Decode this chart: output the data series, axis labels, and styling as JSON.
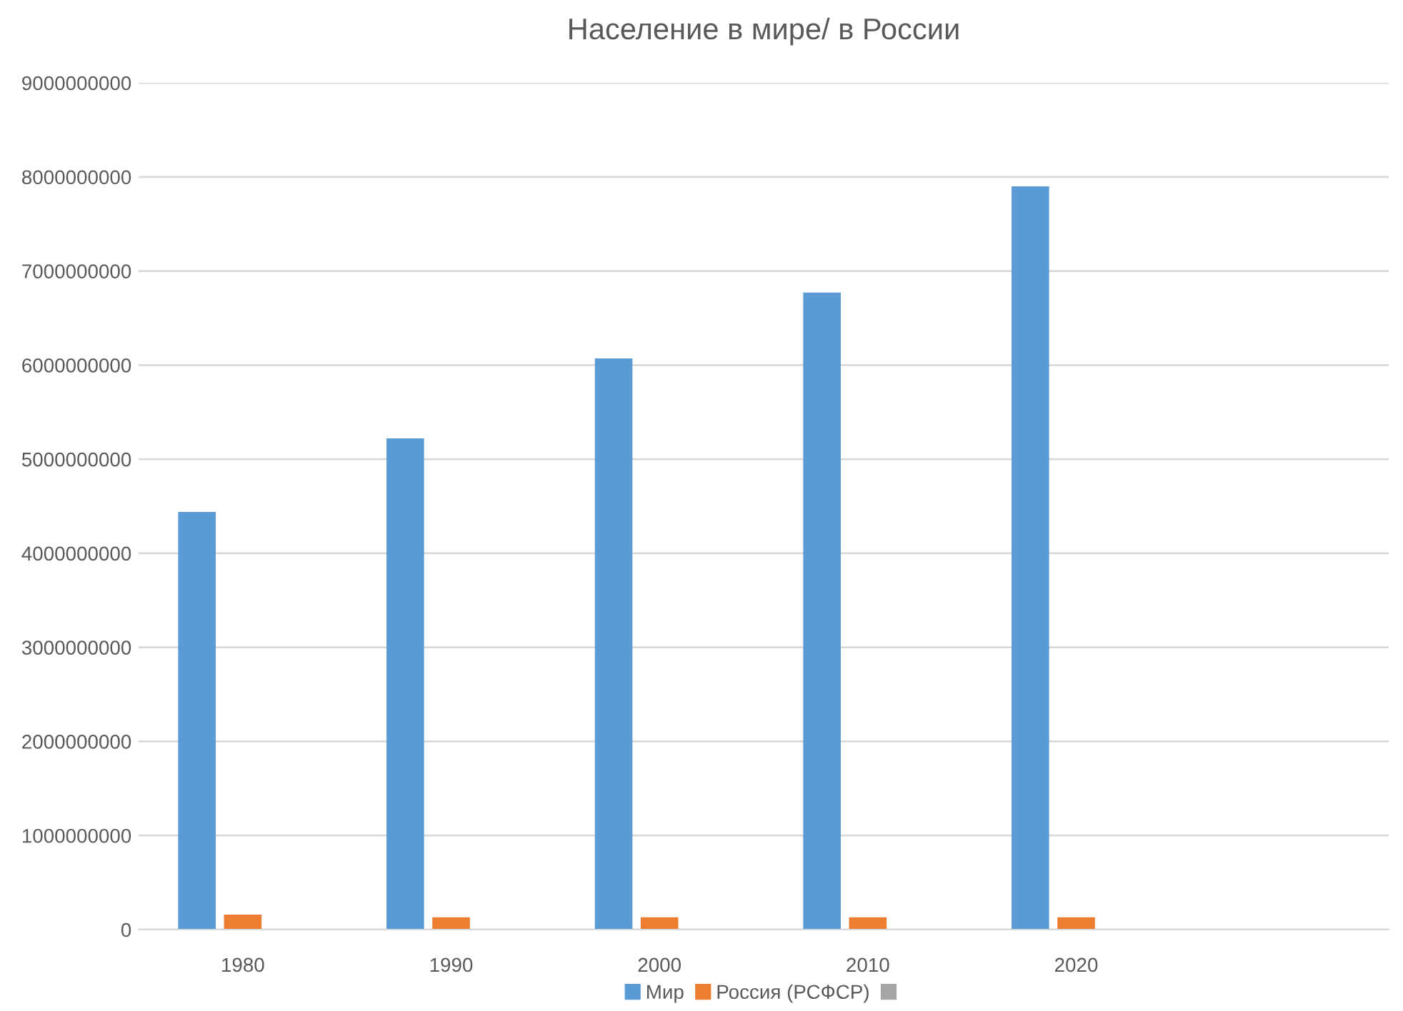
{
  "chart_data": {
    "type": "bar",
    "title": "Население в мире/ в России",
    "categories": [
      "1980",
      "1990",
      "2000",
      "2010",
      "2020",
      null
    ],
    "series": [
      {
        "name": "Мир",
        "color": "#5b9bd5",
        "values": [
          4440000000,
          5220000000,
          6070000000,
          6770000000,
          7900000000,
          null
        ]
      },
      {
        "name": "Россия (РСФСР)",
        "color": "#ed7d31",
        "values": [
          160000000,
          130000000,
          130000000,
          130000000,
          130000000,
          null
        ]
      },
      {
        "color": "#a5a5a5",
        "values": [
          null,
          null,
          null,
          null,
          null,
          null
        ]
      }
    ],
    "ylim": [
      0,
      9000000000
    ],
    "yticks": [
      0,
      1000000000,
      2000000000,
      3000000000,
      4000000000,
      5000000000,
      6000000000,
      7000000000,
      8000000000,
      9000000000
    ],
    "grid": "y",
    "legend": "bottom"
  }
}
